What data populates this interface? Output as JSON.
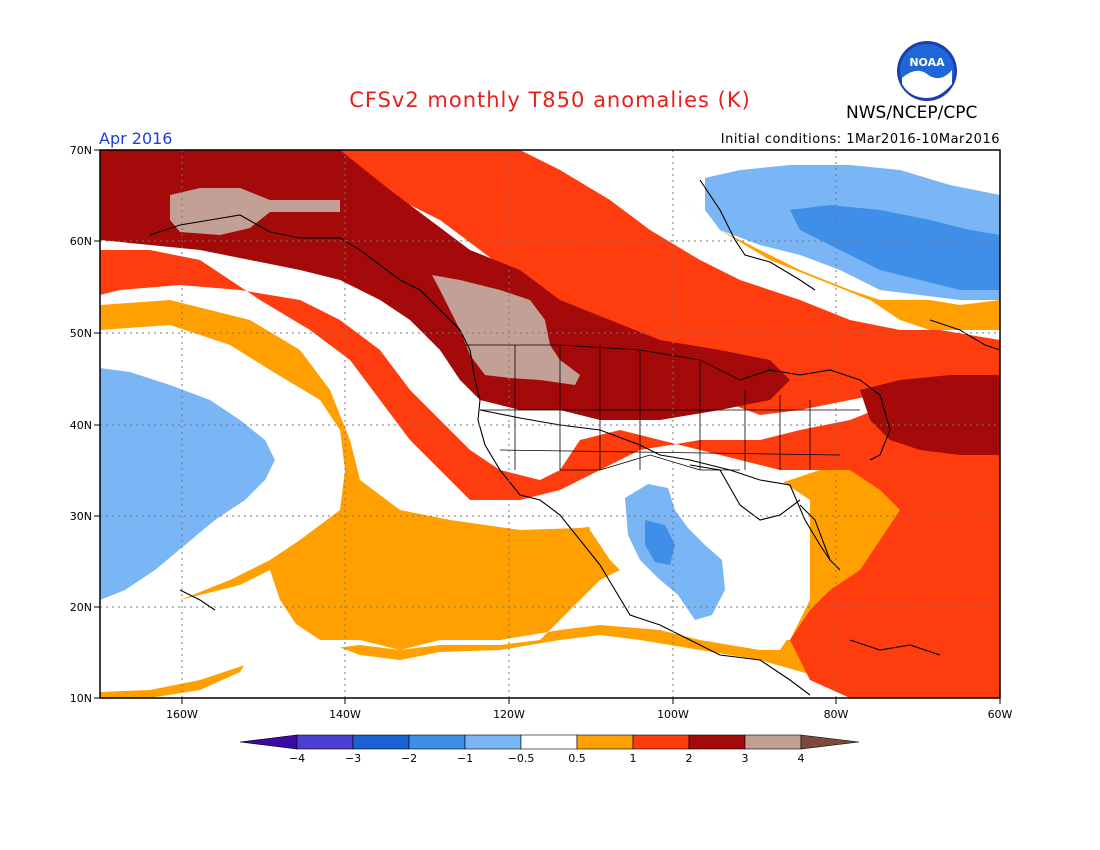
{
  "title": "CFSv2 monthly T850 anomalies (K)",
  "agency": "NWS/NCEP/CPC",
  "logo_text": "NOAA",
  "period": "Apr 2016",
  "initial_conditions": "Initial conditions: 1Mar2016-10Mar2016",
  "lat_labels": [
    "70N",
    "60N",
    "50N",
    "40N",
    "30N",
    "20N",
    "10N"
  ],
  "lon_labels": [
    "160W",
    "140W",
    "120W",
    "100W",
    "80W",
    "60W"
  ],
  "colorbar": {
    "labels": [
      "−4",
      "−3",
      "−2",
      "−1",
      "−0.5",
      "0.5",
      "1",
      "2",
      "3",
      "4"
    ],
    "colors": [
      "#3b0aa6",
      "#4a3fd0",
      "#1a62d4",
      "#3f8ee8",
      "#7ab6f5",
      "#ffffff",
      "#ffa000",
      "#ff3c0e",
      "#a50a0a",
      "#c3a095",
      "#7a4a3a"
    ]
  },
  "colors": {
    "land_border": "#000000",
    "grid": "#777777",
    "title": "#e8201c",
    "period": "#1d3fd8"
  }
}
